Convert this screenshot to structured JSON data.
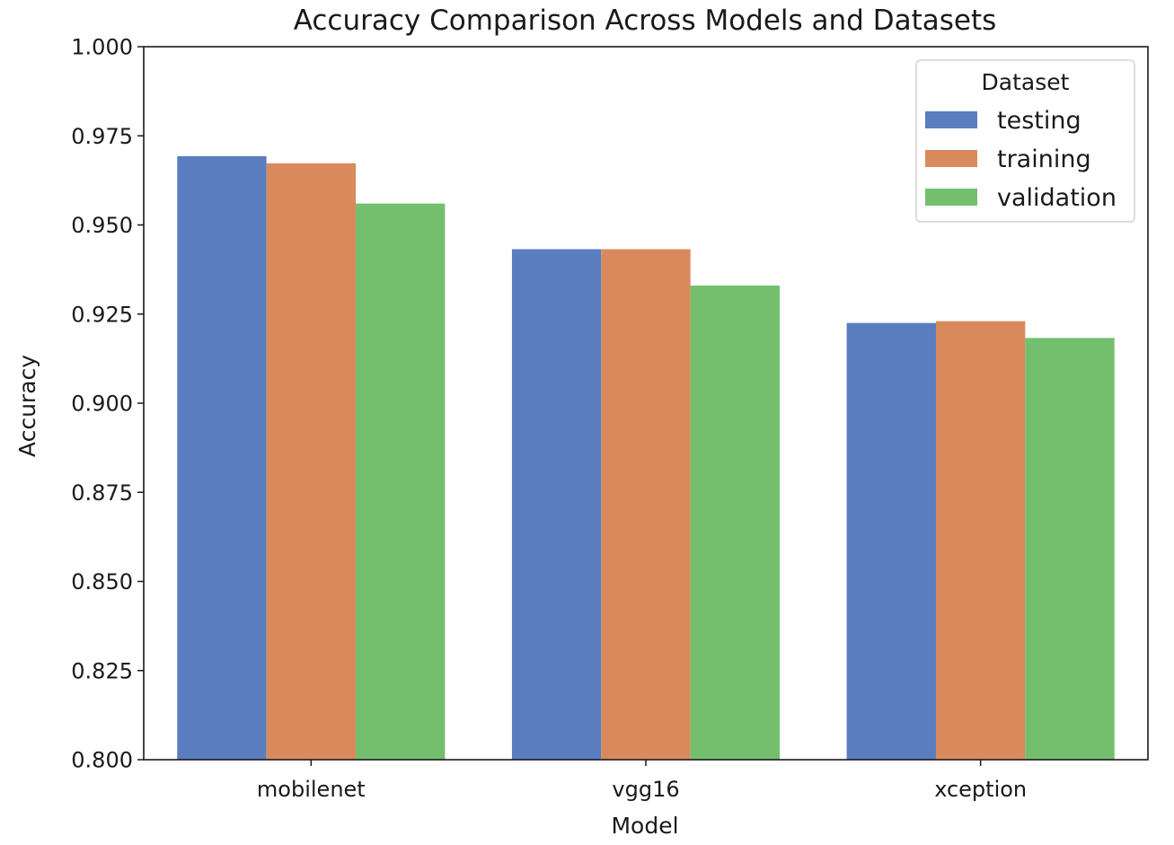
{
  "chart_data": {
    "type": "bar",
    "title": "Accuracy Comparison Across Models and Datasets",
    "xlabel": "Model",
    "ylabel": "Accuracy",
    "categories": [
      "mobilenet",
      "vgg16",
      "xception"
    ],
    "ylim": [
      0.8,
      1.0
    ],
    "yticks": [
      0.8,
      0.825,
      0.85,
      0.875,
      0.9,
      0.925,
      0.95,
      0.975,
      1.0
    ],
    "ytick_labels": [
      "0.800",
      "0.825",
      "0.850",
      "0.875",
      "0.900",
      "0.925",
      "0.950",
      "0.975",
      "1.000"
    ],
    "grid": false,
    "legend": {
      "title": "Dataset",
      "placement": "top-right"
    },
    "series": [
      {
        "name": "testing",
        "color": "#5a7dc0",
        "values": [
          0.9693,
          0.9432,
          0.9225
        ]
      },
      {
        "name": "training",
        "color": "#d98a5d",
        "values": [
          0.9673,
          0.9432,
          0.923
        ]
      },
      {
        "name": "validation",
        "color": "#74bf6e",
        "values": [
          0.956,
          0.933,
          0.9183
        ]
      }
    ]
  }
}
